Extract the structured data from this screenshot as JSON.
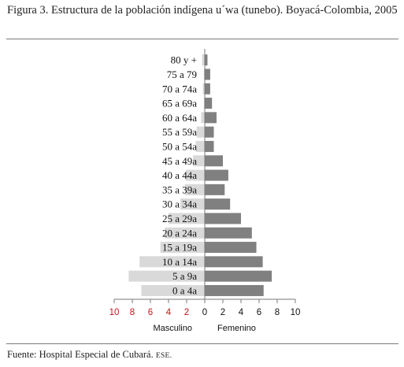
{
  "figure": {
    "title": "Figura 3. Estructura de la población indígena u´wa (tunebo). Boyacá-Colombia, 2005",
    "source_text": "Fuente: Hospital Especial de Cubará.",
    "source_abbr": "ESE."
  },
  "chart_data": {
    "type": "bar",
    "orientation": "horizontal-pyramid",
    "categories": [
      "80 y +",
      "75 a 79",
      "70 a 74a",
      "65 a 69a",
      "60 a 64a",
      "55 a 59a",
      "50 a 54a",
      "45 a 49a",
      "40 a 44a",
      "35 a 39a",
      "30 a 34a",
      "25 a 29a",
      "20 a 24a",
      "15 a 19a",
      "10 a 14a",
      "5 a 9a",
      "0 a 4a"
    ],
    "series": [
      {
        "name": "Masculino",
        "color": "#d9d9d9",
        "values": [
          0.3,
          0.1,
          0.2,
          0.1,
          0.4,
          0.9,
          1.0,
          1.3,
          2.1,
          2.2,
          2.7,
          4.0,
          4.4,
          4.9,
          7.2,
          8.4,
          7.0
        ]
      },
      {
        "name": "Femenino",
        "color": "#808080",
        "values": [
          0.3,
          0.6,
          0.6,
          0.8,
          1.3,
          1.0,
          1.0,
          2.0,
          2.6,
          2.2,
          2.8,
          4.0,
          5.2,
          5.7,
          6.4,
          7.4,
          6.5
        ]
      }
    ],
    "xlim": [
      -10,
      10
    ],
    "x_ticks": [
      {
        "value": -10,
        "label": "10"
      },
      {
        "value": -8,
        "label": "8"
      },
      {
        "value": -6,
        "label": "6"
      },
      {
        "value": -4,
        "label": "4"
      },
      {
        "value": -2,
        "label": "2"
      },
      {
        "value": 0,
        "label": "0"
      },
      {
        "value": 2,
        "label": "2"
      },
      {
        "value": 4,
        "label": "4"
      },
      {
        "value": 6,
        "label": "6"
      },
      {
        "value": 8,
        "label": "8"
      },
      {
        "value": 10,
        "label": "10"
      }
    ],
    "left_tick_color": "#c0161b",
    "right_tick_color": "#111111",
    "grid": false
  }
}
